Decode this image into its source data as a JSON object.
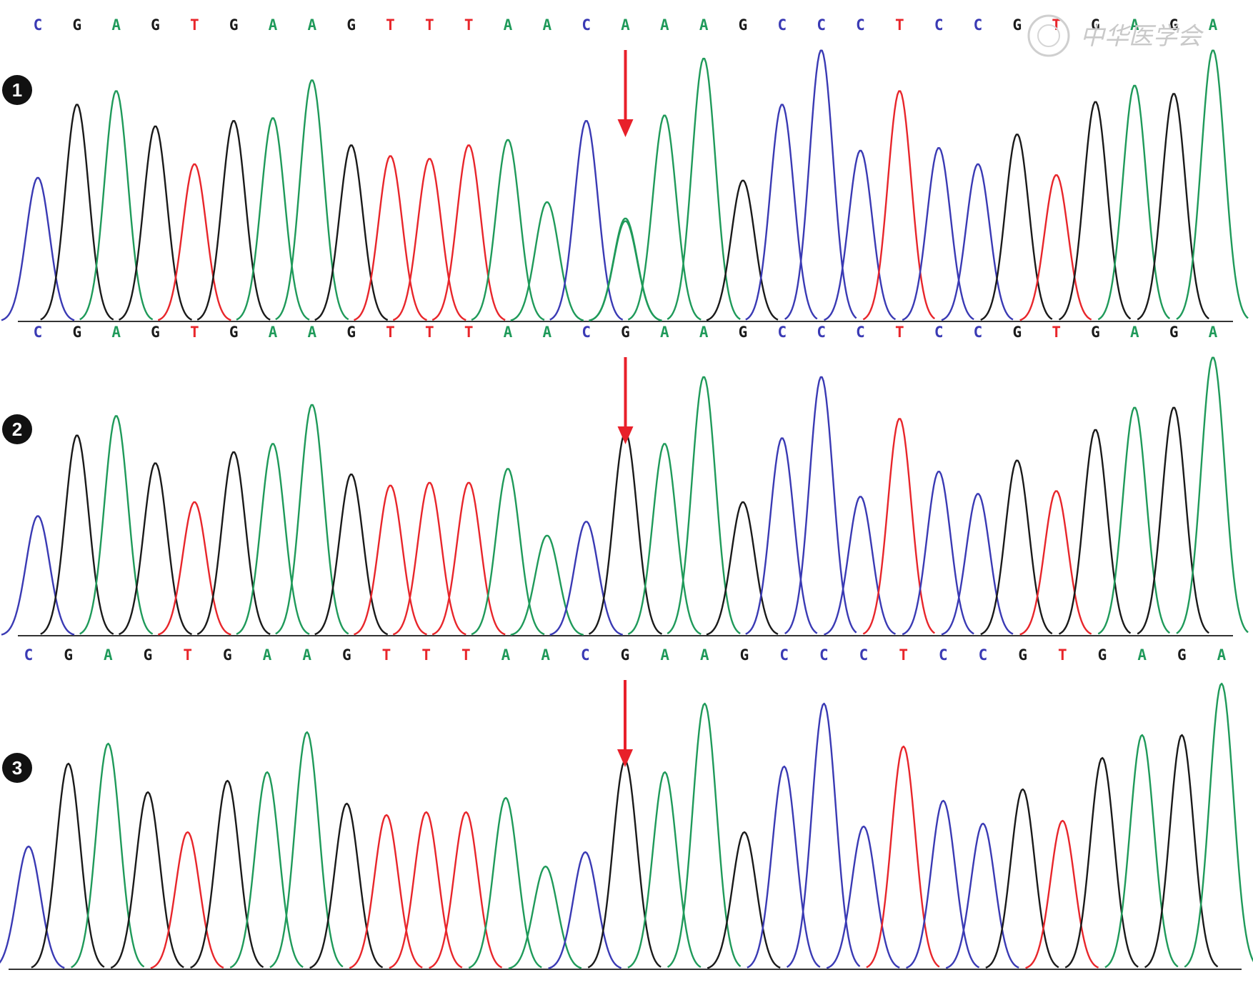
{
  "base_colors": {
    "A": "#1f9a5a",
    "C": "#3a3ab4",
    "G": "#1a1a1a",
    "T": "#e8262b"
  },
  "marker_color": "#e8202a",
  "watermark": {
    "text": "中华医学会",
    "color": "#c9c9c9"
  },
  "panels": [
    {
      "number": "1",
      "sequence": "CGAGTGAAGTTTAACAAAGCCCTCCGTGAGA",
      "arrow_index": 15,
      "peak_heights": [
        0.53,
        0.8,
        0.85,
        0.72,
        0.58,
        0.74,
        0.75,
        0.89,
        0.65,
        0.61,
        0.6,
        0.65,
        0.67,
        0.44,
        0.74,
        0.37,
        0.76,
        0.97,
        0.52,
        0.8,
        1.0,
        0.63,
        0.85,
        0.64,
        0.58,
        0.69,
        0.54,
        0.81,
        0.87,
        0.84,
        1.0
      ],
      "overlap_peak": {
        "index": 15,
        "base": "A",
        "height": 0.38
      }
    },
    {
      "number": "2",
      "sequence": "CGAGTGAAGTTTAACGAAGCCCTCCGTGAGA",
      "arrow_index": 15,
      "peak_heights": [
        0.43,
        0.72,
        0.79,
        0.62,
        0.48,
        0.66,
        0.69,
        0.83,
        0.58,
        0.54,
        0.55,
        0.55,
        0.6,
        0.36,
        0.41,
        0.73,
        0.69,
        0.93,
        0.48,
        0.71,
        0.93,
        0.5,
        0.78,
        0.59,
        0.51,
        0.63,
        0.52,
        0.74,
        0.82,
        0.82,
        1.0
      ],
      "overlap_peak": null
    },
    {
      "number": "3",
      "sequence": "CGAGTGAAGTTTAACGAAGCCCTCCGTGAGA",
      "arrow_index": 15,
      "peak_heights": [
        0.43,
        0.72,
        0.79,
        0.62,
        0.48,
        0.66,
        0.69,
        0.83,
        0.58,
        0.54,
        0.55,
        0.55,
        0.6,
        0.36,
        0.41,
        0.73,
        0.69,
        0.93,
        0.48,
        0.71,
        0.93,
        0.5,
        0.78,
        0.59,
        0.51,
        0.63,
        0.52,
        0.74,
        0.82,
        0.82,
        1.0
      ],
      "overlap_peak": null
    }
  ]
}
